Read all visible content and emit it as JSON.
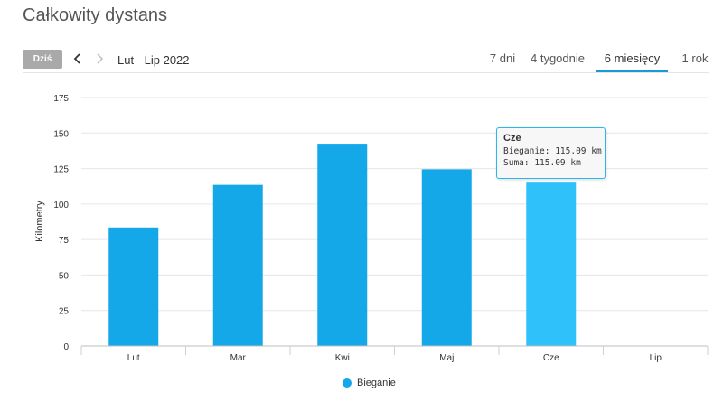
{
  "header": {
    "title": "Całkowity dystans"
  },
  "toolbar": {
    "today_label": "Dziś",
    "period_label": "Lut - Lip 2022",
    "tabs": [
      {
        "label": "7 dni",
        "active": false
      },
      {
        "label": "4 tygodnie",
        "active": false
      },
      {
        "label": "6 miesięcy",
        "active": true
      },
      {
        "label": "1 rok",
        "active": false
      }
    ]
  },
  "colors": {
    "bar": "#15a8e9",
    "bar_highlight": "#2fc2fa",
    "accent": "#1a9ad6"
  },
  "chart_data": {
    "type": "bar",
    "categories": [
      "Lut",
      "Mar",
      "Kwi",
      "Maj",
      "Cze",
      "Lip"
    ],
    "series": [
      {
        "name": "Bieganie",
        "values": [
          83.5,
          113.5,
          142.5,
          124.5,
          115.09,
          null
        ]
      }
    ],
    "ylabel": "Kilometry",
    "xlabel": "",
    "ylim": [
      0,
      175
    ],
    "yticks": [
      0,
      25,
      50,
      75,
      100,
      125,
      150,
      175
    ],
    "grid": true,
    "legend": "bottom",
    "highlighted_category": "Cze",
    "tooltip": {
      "title": "Cze",
      "lines": [
        "Bieganie: 115.09 km",
        "Suma: 115.09 km"
      ]
    }
  }
}
